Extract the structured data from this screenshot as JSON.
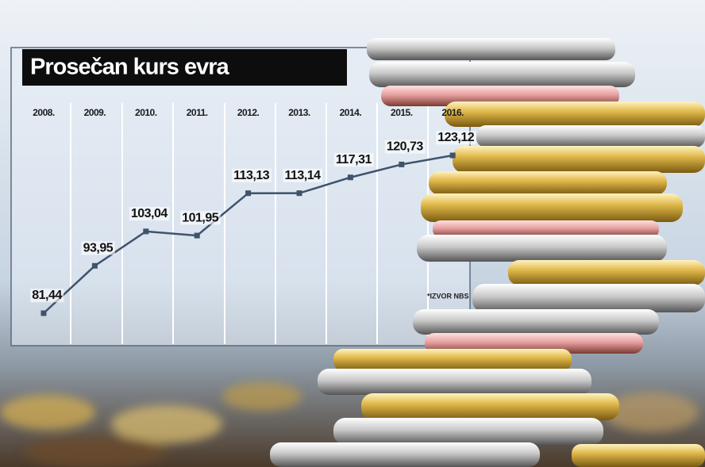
{
  "chart_data": {
    "type": "line",
    "title": "Prosečan kurs evra",
    "categories": [
      "2008.",
      "2009.",
      "2010.",
      "2011.",
      "2012.",
      "2013.",
      "2014.",
      "2015.",
      "2016."
    ],
    "values": [
      81.44,
      93.95,
      103.04,
      101.95,
      113.13,
      113.14,
      117.31,
      120.73,
      123.12
    ],
    "value_labels": [
      "81,44",
      "93,95",
      "103,04",
      "101,95",
      "113,13",
      "113,14",
      "117,31",
      "120,73",
      "123,12"
    ],
    "color": "#3f536b",
    "source": "*IZVOR NBS"
  }
}
